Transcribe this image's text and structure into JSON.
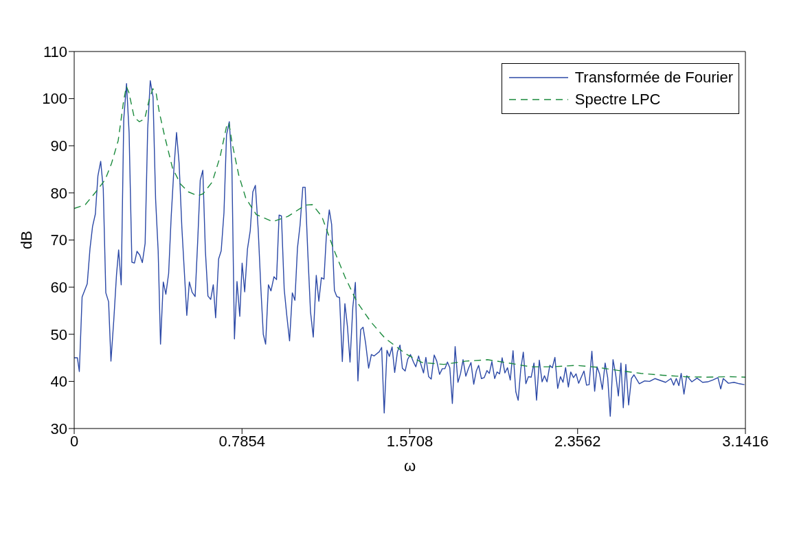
{
  "chart_data": {
    "type": "line",
    "xlabel": "ω",
    "ylabel": "dB",
    "xlim": [
      0,
      3.1416
    ],
    "ylim": [
      30,
      110
    ],
    "xticks": [
      0,
      0.7854,
      1.5708,
      2.3562,
      3.1416
    ],
    "yticks": [
      30,
      40,
      50,
      60,
      70,
      80,
      90,
      100,
      110
    ],
    "legend": "top right",
    "marker": "none",
    "series": [
      {
        "name": "Transformée de Fourier",
        "color": "#2b48a6",
        "line_style": "solid",
        "x": [
          0,
          0.015,
          0.024,
          0.037,
          0.061,
          0.074,
          0.086,
          0.099,
          0.111,
          0.124,
          0.136,
          0.148,
          0.161,
          0.172,
          0.185,
          0.198,
          0.208,
          0.22,
          0.232,
          0.245,
          0.257,
          0.27,
          0.282,
          0.294,
          0.307,
          0.319,
          0.332,
          0.344,
          0.356,
          0.369,
          0.381,
          0.393,
          0.404,
          0.417,
          0.429,
          0.442,
          0.454,
          0.467,
          0.479,
          0.491,
          0.504,
          0.516,
          0.527,
          0.539,
          0.552,
          0.566,
          0.578,
          0.59,
          0.602,
          0.614,
          0.626,
          0.639,
          0.651,
          0.662,
          0.676,
          0.688,
          0.701,
          0.713,
          0.726,
          0.738,
          0.75,
          0.762,
          0.775,
          0.786,
          0.798,
          0.811,
          0.824,
          0.836,
          0.848,
          0.861,
          0.874,
          0.885,
          0.896,
          0.909,
          0.921,
          0.935,
          0.947,
          0.959,
          0.97,
          0.983,
          0.995,
          1.008,
          1.021,
          1.033,
          1.045,
          1.057,
          1.07,
          1.081,
          1.093,
          1.106,
          1.119,
          1.133,
          1.145,
          1.157,
          1.169,
          1.18,
          1.194,
          1.205,
          1.218,
          1.229,
          1.242,
          1.255,
          1.267,
          1.279,
          1.291,
          1.304,
          1.316,
          1.328,
          1.341,
          1.352,
          1.364,
          1.378,
          1.391,
          1.404,
          1.428,
          1.439,
          1.451,
          1.464,
          1.475,
          1.488,
          1.5,
          1.513,
          1.525,
          1.536,
          1.549,
          1.561,
          1.574,
          1.588,
          1.599,
          1.612,
          1.622,
          1.635,
          1.646,
          1.659,
          1.671,
          1.685,
          1.697,
          1.71,
          1.723,
          1.735,
          1.747,
          1.758,
          1.77,
          1.783,
          1.796,
          1.808,
          1.82,
          1.833,
          1.845,
          1.857,
          1.87,
          1.882,
          1.893,
          1.906,
          1.919,
          1.932,
          1.943,
          1.955,
          1.968,
          1.979,
          1.991,
          2.003,
          2.016,
          2.028,
          2.041,
          2.054,
          2.067,
          2.078,
          2.09,
          2.102,
          2.114,
          2.126,
          2.139,
          2.152,
          2.164,
          2.177,
          2.19,
          2.201,
          2.213,
          2.226,
          2.238,
          2.25,
          2.263,
          2.276,
          2.288,
          2.3,
          2.313,
          2.324,
          2.337,
          2.349,
          2.361,
          2.386,
          2.398,
          2.41,
          2.423,
          2.436,
          2.447,
          2.459,
          2.472,
          2.485,
          2.497,
          2.509,
          2.522,
          2.534,
          2.547,
          2.559,
          2.57,
          2.582,
          2.595,
          2.608,
          2.62,
          2.645,
          2.67,
          2.693,
          2.718,
          2.743,
          2.768,
          2.793,
          2.806,
          2.818,
          2.83,
          2.841,
          2.854,
          2.867,
          2.891,
          2.915,
          2.941,
          2.965,
          2.989,
          3.013,
          3.026,
          3.038,
          3.062,
          3.088,
          3.113,
          3.137
        ],
        "values": [
          45.0,
          45.0,
          42.1,
          57.9,
          60.7,
          68.2,
          72.9,
          75.5,
          83.6,
          86.7,
          80.9,
          58.8,
          56.9,
          44.3,
          52.8,
          62.6,
          67.9,
          60.5,
          95.7,
          103.2,
          92.8,
          65.3,
          65.1,
          67.6,
          66.8,
          65.2,
          69.3,
          93.6,
          103.8,
          100.4,
          78.7,
          67.7,
          47.9,
          61.1,
          58.5,
          62.9,
          75.0,
          85.3,
          92.8,
          86.3,
          72.6,
          62.9,
          54.0,
          61.1,
          58.9,
          58.0,
          69.7,
          82.7,
          84.8,
          67.7,
          58.1,
          57.4,
          60.5,
          53.5,
          66.0,
          67.7,
          75.8,
          92.3,
          95.1,
          86.0,
          49.0,
          61.2,
          53.8,
          65.1,
          59.0,
          68.1,
          72.0,
          80.2,
          81.6,
          72.4,
          59.5,
          50.0,
          47.9,
          60.5,
          59.2,
          62.2,
          61.6,
          75.3,
          75.1,
          59.5,
          54.0,
          48.6,
          58.8,
          57.2,
          68.3,
          73.1,
          81.2,
          81.2,
          67.7,
          54.8,
          49.4,
          62.5,
          57.0,
          62.0,
          61.7,
          70.7,
          76.4,
          73.3,
          59.3,
          58.0,
          57.8,
          44.2,
          56.5,
          51.6,
          44.1,
          55.7,
          61.0,
          40.1,
          51.0,
          51.5,
          48.1,
          42.8,
          45.7,
          45.4,
          46.3,
          47.2,
          33.3,
          46.6,
          45.3,
          47.3,
          41.9,
          46.3,
          47.7,
          42.8,
          42.2,
          44.7,
          45.7,
          44.1,
          43.1,
          45.4,
          43.7,
          41.8,
          45.1,
          41.0,
          40.5,
          45.6,
          44.3,
          41.5,
          42.7,
          42.7,
          44.1,
          42.9,
          35.3,
          47.4,
          39.8,
          41.6,
          44.6,
          41.1,
          42.7,
          44.0,
          39.4,
          42.2,
          43.4,
          40.6,
          40.8,
          42.3,
          41.7,
          44.2,
          40.6,
          42.0,
          41.6,
          45.0,
          41.8,
          42.9,
          40.3,
          46.5,
          37.8,
          36.0,
          42.5,
          46.2,
          39.5,
          41.0,
          40.9,
          43.9,
          36.0,
          44.5,
          39.9,
          41.2,
          39.9,
          43.4,
          42.9,
          45.1,
          38.5,
          41.0,
          39.8,
          42.9,
          38.8,
          42.0,
          40.8,
          41.6,
          39.6,
          42.2,
          39.2,
          39.3,
          46.4,
          37.9,
          43.1,
          41.6,
          38.3,
          43.9,
          40.8,
          32.6,
          44.6,
          41.6,
          36.9,
          43.9,
          34.4,
          43.6,
          35.0,
          40.6,
          41.4,
          39.5,
          40.1,
          40.0,
          40.6,
          40.2,
          39.8,
          40.6,
          39.2,
          40.6,
          39.1,
          41.7,
          37.3,
          41.2,
          39.9,
          40.7,
          39.8,
          39.9,
          40.3,
          40.8,
          38.4,
          40.6,
          39.6,
          39.8,
          39.5,
          39.3
        ]
      },
      {
        "name": "Spectre LPC",
        "color": "#1a8a3c",
        "line_style": "dashed",
        "x": [
          0,
          0.052,
          0.101,
          0.145,
          0.175,
          0.206,
          0.231,
          0.244,
          0.256,
          0.281,
          0.305,
          0.33,
          0.349,
          0.368,
          0.383,
          0.398,
          0.423,
          0.46,
          0.497,
          0.535,
          0.578,
          0.603,
          0.646,
          0.683,
          0.714,
          0.724,
          0.739,
          0.77,
          0.803,
          0.852,
          0.929,
          1.0,
          1.082,
          1.115,
          1.159,
          1.214,
          1.268,
          1.323,
          1.389,
          1.454,
          1.553,
          1.628,
          1.73,
          1.833,
          1.935,
          2.032,
          2.135,
          2.237,
          2.35,
          2.447,
          2.55,
          2.653,
          2.755,
          2.857,
          2.96,
          3.062,
          3.1416
        ],
        "values": [
          76.7,
          77.5,
          80.2,
          82.8,
          86.3,
          91.1,
          99.4,
          102.6,
          101.3,
          96.0,
          95.1,
          95.7,
          99.4,
          102.1,
          101.3,
          97.2,
          92.1,
          85.3,
          81.9,
          80.2,
          79.4,
          79.8,
          82.3,
          87.7,
          94.3,
          94.9,
          90.6,
          83.8,
          78.9,
          75.4,
          73.9,
          75.0,
          77.4,
          77.5,
          75.0,
          68.1,
          62.1,
          56.9,
          52.6,
          49.2,
          45.8,
          44.0,
          43.6,
          44.3,
          44.6,
          43.9,
          43.1,
          43.1,
          43.4,
          43.0,
          42.3,
          41.7,
          41.3,
          41.0,
          40.9,
          41.0,
          40.9
        ]
      }
    ]
  }
}
